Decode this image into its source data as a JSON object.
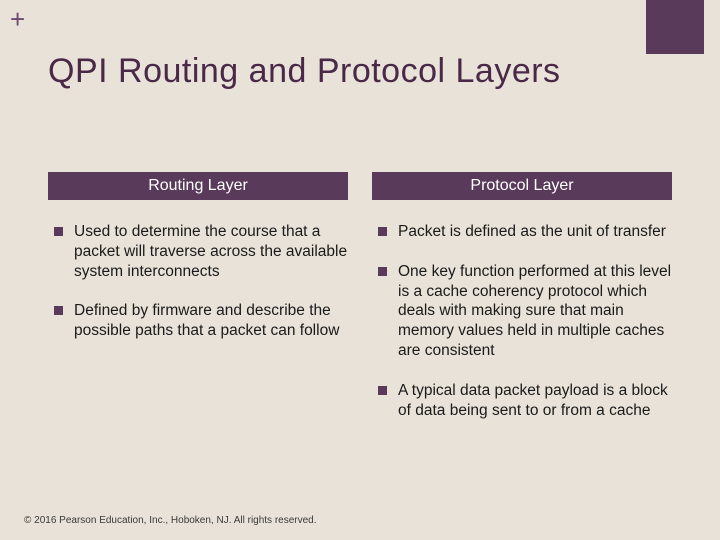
{
  "slide": {
    "plus_symbol": "+",
    "title": "QPI Routing and Protocol Layers",
    "corner_block_color": "#5a3a5a",
    "background_color": "#e8e2d8",
    "title_color": "#4a2948",
    "title_fontsize": 34
  },
  "left_column": {
    "header": "Routing Layer",
    "header_bg": "#5a3a5a",
    "header_color": "#ffffff",
    "bullets": [
      "Used to determine the course that a packet will traverse across the available system interconnects",
      "Defined by firmware and describe the possible paths that a packet can follow"
    ]
  },
  "right_column": {
    "header": "Protocol Layer",
    "header_bg": "#5a3a5a",
    "header_color": "#ffffff",
    "bullets": [
      "Packet is defined as the unit of transfer",
      "One key function performed at this level is a cache coherency protocol which deals with making sure that main memory values held in multiple caches are consistent",
      "A typical data packet payload is a block of data being sent to or from a cache"
    ]
  },
  "footer": {
    "text": "© 2016 Pearson Education, Inc., Hoboken, NJ. All rights reserved."
  },
  "bullet_style": {
    "marker_color": "#5a3a5a",
    "marker_size": 9,
    "text_color": "#1a1a1a",
    "fontsize": 15.5
  }
}
